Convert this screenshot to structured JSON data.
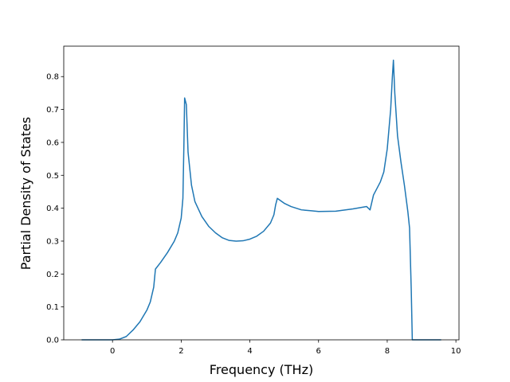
{
  "chart_data": {
    "type": "line",
    "xlabel": "Frequency (THz)",
    "ylabel": "Partial Density of States",
    "x": [
      -0.9,
      0,
      0.2,
      0.4,
      0.6,
      0.8,
      1.0,
      1.1,
      1.2,
      1.25,
      1.4,
      1.6,
      1.8,
      1.9,
      2.0,
      2.05,
      2.08,
      2.1,
      2.15,
      2.2,
      2.3,
      2.4,
      2.6,
      2.8,
      3.0,
      3.2,
      3.4,
      3.6,
      3.8,
      4.0,
      4.2,
      4.4,
      4.6,
      4.7,
      4.75,
      4.8,
      5.0,
      5.2,
      5.5,
      5.8,
      6.0,
      6.5,
      7.0,
      7.4,
      7.5,
      7.6,
      7.8,
      7.9,
      8.0,
      8.1,
      8.15,
      8.18,
      8.22,
      8.3,
      8.4,
      8.5,
      8.6,
      8.65,
      8.7,
      8.73,
      9.57
    ],
    "series": [
      {
        "color": "#1f77b4",
        "values": [
          0,
          0,
          0.002,
          0.01,
          0.03,
          0.055,
          0.09,
          0.115,
          0.16,
          0.215,
          0.235,
          0.265,
          0.3,
          0.325,
          0.37,
          0.43,
          0.6,
          0.735,
          0.715,
          0.57,
          0.47,
          0.42,
          0.375,
          0.345,
          0.325,
          0.31,
          0.302,
          0.3,
          0.301,
          0.306,
          0.315,
          0.33,
          0.355,
          0.38,
          0.41,
          0.43,
          0.415,
          0.405,
          0.395,
          0.392,
          0.39,
          0.391,
          0.398,
          0.405,
          0.395,
          0.44,
          0.48,
          0.51,
          0.58,
          0.7,
          0.8,
          0.85,
          0.75,
          0.62,
          0.54,
          0.47,
          0.39,
          0.34,
          0.15,
          0,
          0
        ]
      }
    ],
    "xlim": [
      -1.42,
      10.09
    ],
    "ylim": [
      0,
      0.8925
    ],
    "xticks": [
      0,
      2,
      4,
      6,
      8,
      10
    ],
    "yticks": [
      {
        "value": 0,
        "label": "0.0"
      },
      0.1,
      0.2,
      0.3,
      0.4,
      0.5,
      0.6,
      0.7,
      0.8
    ],
    "grid": false
  }
}
